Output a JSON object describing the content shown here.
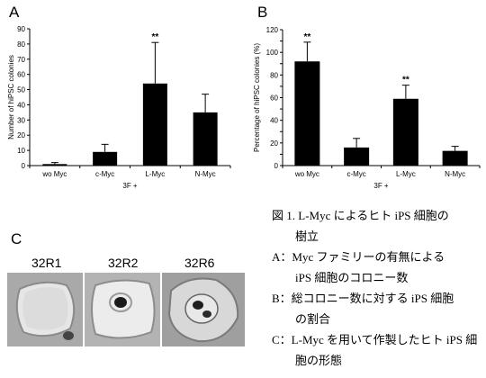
{
  "panels": {
    "a": "A",
    "b": "B",
    "c": "C"
  },
  "chart_data": [
    {
      "type": "bar",
      "panel": "A",
      "categories": [
        "wo Myc",
        "c-Myc",
        "L-Myc",
        "N-Myc"
      ],
      "values": [
        1,
        9,
        54,
        35
      ],
      "errors": [
        1,
        5,
        27,
        12
      ],
      "significance": [
        "",
        "",
        "**",
        ""
      ],
      "xlabel": "3F +",
      "ylabel": "Number of hiPSC colonies",
      "ylim": [
        0,
        90
      ],
      "yticks": [
        0,
        10,
        20,
        30,
        40,
        50,
        60,
        70,
        80,
        90
      ],
      "color": "#000000"
    },
    {
      "type": "bar",
      "panel": "B",
      "categories": [
        "wo Myc",
        "c-Myc",
        "L-Myc",
        "N-Myc"
      ],
      "values": [
        92,
        16,
        59,
        13
      ],
      "errors": [
        17,
        8,
        12,
        4
      ],
      "significance": [
        "**",
        "",
        "**",
        ""
      ],
      "xlabel": "3F +",
      "ylabel": "Percentage of hiPSC colonies (%)",
      "ylim": [
        0,
        120
      ],
      "yticks": [
        0,
        10,
        20,
        30,
        40,
        50,
        60,
        70,
        80,
        90,
        100,
        110,
        120
      ],
      "ytick_labels": [
        "0",
        "",
        "20",
        "",
        "40",
        "",
        "60",
        "",
        "80",
        "",
        "100",
        "",
        "120"
      ],
      "color": "#000000"
    }
  ],
  "photos": [
    {
      "label": "32R1"
    },
    {
      "label": "32R2"
    },
    {
      "label": "32R6"
    }
  ],
  "caption": [
    "図 1. L-Myc によるヒト iPS 細胞の",
    "　　樹立",
    "A：Myc ファミリーの有無による",
    "　　iPS 細胞のコロニー数",
    "B：総コロニー数に対する iPS 細胞",
    "　　の割合",
    "C：L-Myc を用いて作製したヒト iPS 細",
    "　　胞の形態"
  ]
}
